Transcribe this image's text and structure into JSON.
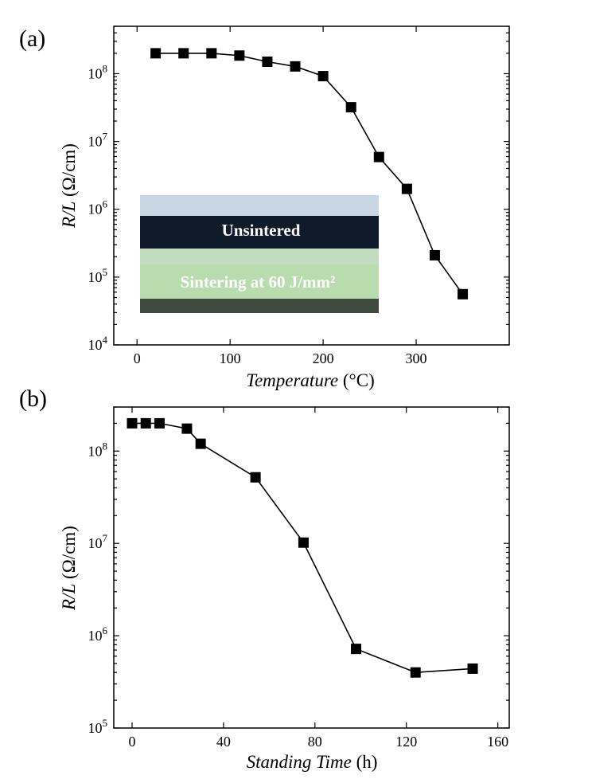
{
  "chart_data": [
    {
      "panel_label": "(a)",
      "type": "line",
      "xlabel_italic": "Temperature",
      "xlabel_unit": " (°C)",
      "ylabel_italic": "R/L",
      "ylabel_unit": " (Ω/cm)",
      "xlim": [
        -25,
        400
      ],
      "ylim": [
        10000,
        500000000
      ],
      "yscale": "log",
      "x_ticks": [
        0,
        100,
        200,
        300
      ],
      "y_ticks": [
        10000,
        100000,
        1000000,
        10000000,
        100000000
      ],
      "y_tick_labels": [
        {
          "base": "10",
          "exp": "4"
        },
        {
          "base": "10",
          "exp": "5"
        },
        {
          "base": "10",
          "exp": "6"
        },
        {
          "base": "10",
          "exp": "7"
        },
        {
          "base": "10",
          "exp": "8"
        }
      ],
      "x": [
        20,
        50,
        80,
        110,
        140,
        170,
        200,
        230,
        260,
        290,
        320,
        350
      ],
      "y": [
        200000000,
        200000000,
        200000000,
        185000000,
        150000000,
        128000000,
        92000000,
        32000000,
        5900000,
        2000000,
        210000,
        56000
      ],
      "marker": "square",
      "color": "#000000",
      "inset": {
        "label_top": "Unsintered",
        "label_bottom": "Sintering at 60 J/mm²",
        "colors": {
          "sky": "#c9d6e4",
          "dark": "#0f1a2a",
          "light": "#c3dcc0",
          "green": "#b9dcaf"
        }
      }
    },
    {
      "panel_label": "(b)",
      "type": "line",
      "xlabel_italic": "Standing Time",
      "xlabel_unit": " (h)",
      "ylabel_italic": "R/L",
      "ylabel_unit": " (Ω/cm)",
      "xlim": [
        -8,
        165
      ],
      "ylim": [
        100000,
        300000000
      ],
      "yscale": "log",
      "x_ticks": [
        0,
        40,
        80,
        120,
        160
      ],
      "y_ticks": [
        100000,
        1000000,
        10000000,
        100000000
      ],
      "y_tick_labels": [
        {
          "base": "10",
          "exp": "5"
        },
        {
          "base": "10",
          "exp": "6"
        },
        {
          "base": "10",
          "exp": "7"
        },
        {
          "base": "10",
          "exp": "8"
        }
      ],
      "x": [
        0,
        6,
        12,
        24,
        30,
        54,
        75,
        98,
        124,
        149
      ],
      "y": [
        200000000,
        200000000,
        200000000,
        175000000,
        120000000,
        52000000,
        10200000,
        720000,
        400000,
        440000
      ],
      "marker": "square",
      "color": "#000000"
    }
  ]
}
